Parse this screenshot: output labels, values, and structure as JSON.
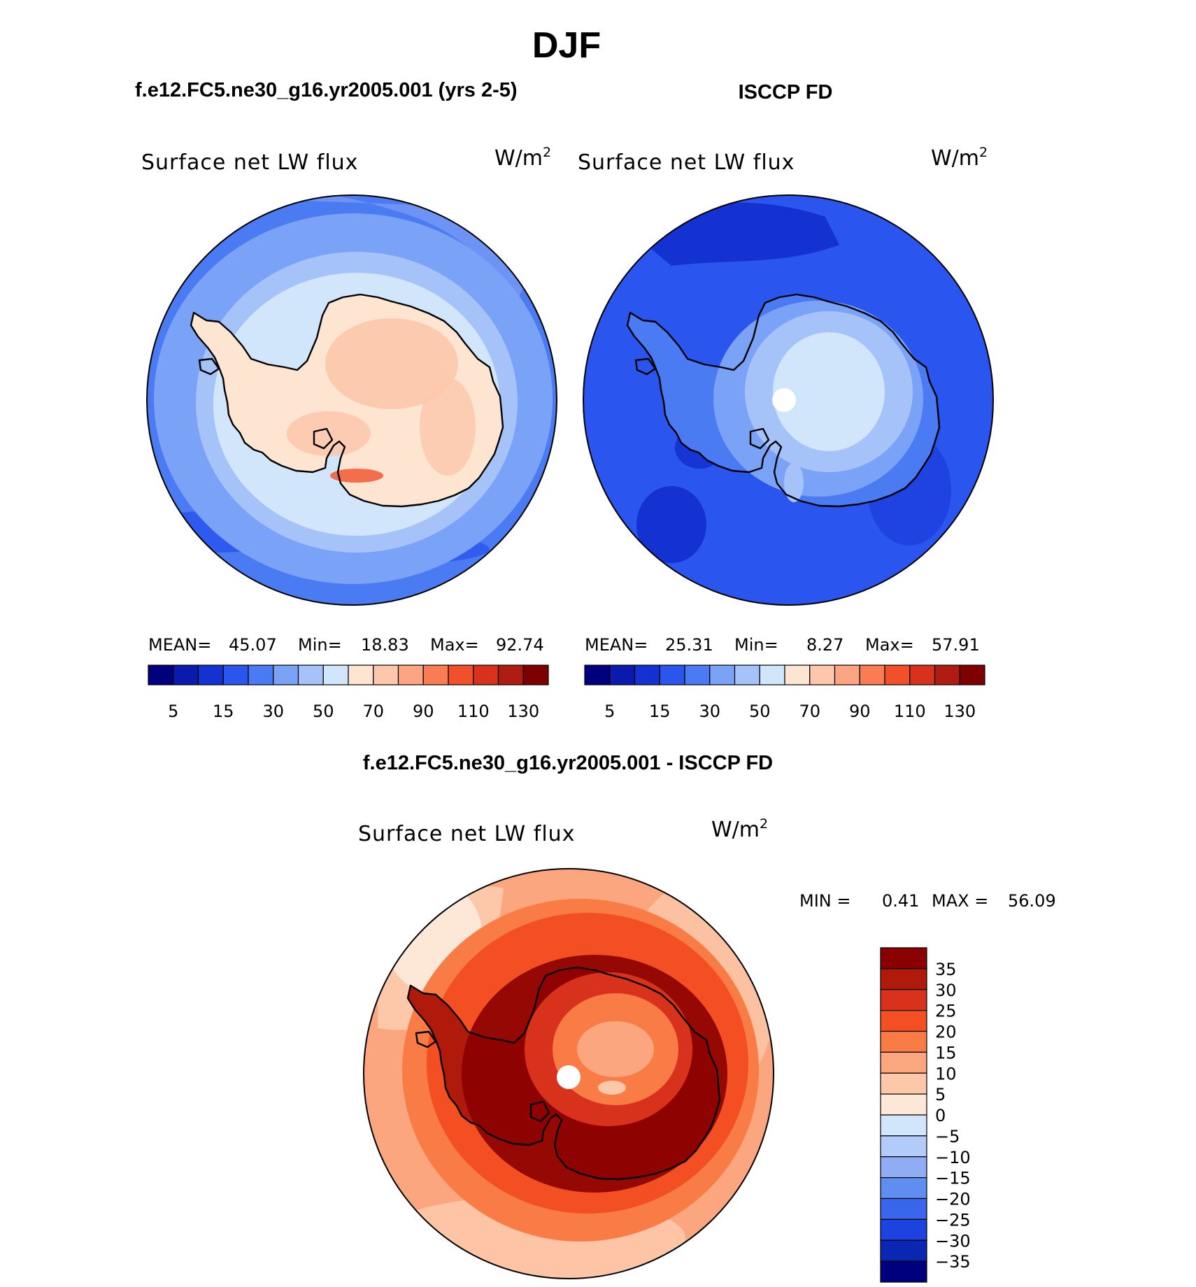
{
  "figure": {
    "season_title": "DJF",
    "panel_model_title": "f.e12.FC5.ne30_g16.yr2005.001 (yrs 2-5)",
    "panel_obs_title": "ISCCP FD",
    "panel_diff_title": "f.e12.FC5.ne30_g16.yr2005.001 - ISCCP FD"
  },
  "variable": {
    "name": "Surface net LW flux",
    "units_base": "W/m",
    "units_exp": "2"
  },
  "panels": [
    {
      "id": "model",
      "stats": {
        "mean_label": "MEAN=",
        "mean": "45.07",
        "min_label": "Min=",
        "min": "18.83",
        "max_label": "Max=",
        "max": "92.74"
      }
    },
    {
      "id": "obs",
      "stats": {
        "mean_label": "MEAN=",
        "mean": "25.31",
        "min_label": "Min=",
        "min": "8.27",
        "max_label": "Max=",
        "max": "57.91"
      }
    },
    {
      "id": "diff",
      "stats": {
        "min_label": "MIN =",
        "min": "0.41",
        "max_label": "MAX =",
        "max": "56.09"
      }
    }
  ],
  "abs_colorbar": {
    "tick_labels": [
      "5",
      "15",
      "30",
      "50",
      "70",
      "90",
      "110",
      "130"
    ],
    "colors": [
      "#00007f",
      "#0a1aaf",
      "#1432d2",
      "#2a55ee",
      "#4a7bf2",
      "#7aa2f6",
      "#a6c3f9",
      "#d2e6fb",
      "#fde5d2",
      "#fcc7ab",
      "#fca583",
      "#fb7c52",
      "#f2502a",
      "#d8321c",
      "#b01c12",
      "#7f0000"
    ]
  },
  "diff_colorbar": {
    "tick_labels": [
      "35",
      "30",
      "25",
      "20",
      "15",
      "10",
      "5",
      "0",
      "−35"
    ],
    "tick_labels_negative": [
      "−5",
      "−10",
      "−15",
      "−20",
      "−25",
      "−30"
    ],
    "colors": [
      "#8b0000",
      "#b01a0a",
      "#d8321c",
      "#f44f22",
      "#f97c46",
      "#fba67e",
      "#fdc8aa",
      "#fde7d6",
      "#d2e6fb",
      "#b2cbf8",
      "#8eadf5",
      "#5f8ef0",
      "#3966eb",
      "#1c43df",
      "#0c26b4",
      "#00007f"
    ]
  }
}
